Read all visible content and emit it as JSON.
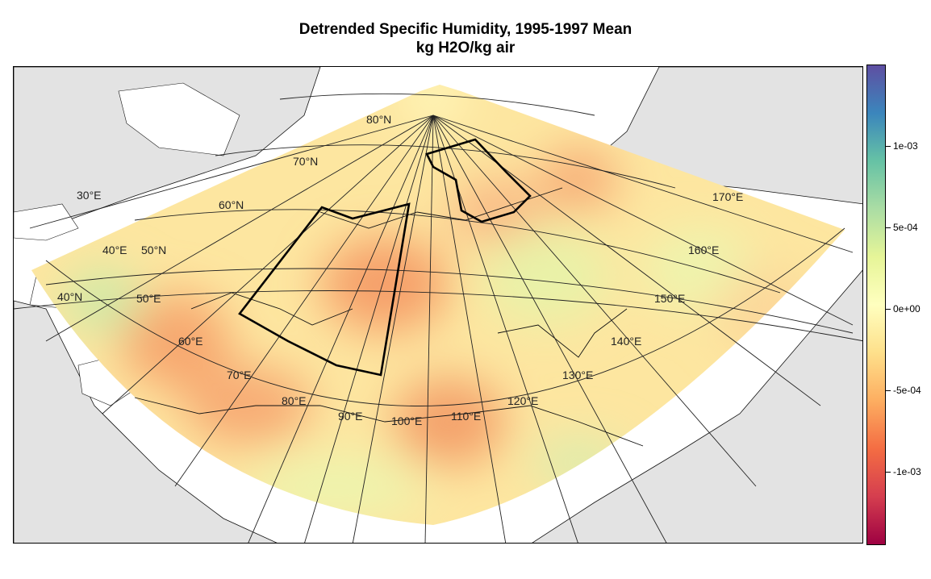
{
  "title": {
    "line1": "Detrended Specific Humidity, 1995-1997 Mean",
    "line2": "kg H2O/kg air"
  },
  "colorbar": {
    "colors": [
      "#5e4fa2",
      "#3b86bc",
      "#66c2a5",
      "#abdda4",
      "#e6f598",
      "#ffffbf",
      "#fee08b",
      "#fdae61",
      "#f46d43",
      "#d53e4f",
      "#9e0142"
    ],
    "range": [
      -0.00145,
      0.0015
    ],
    "ticks": [
      {
        "value": 0.001,
        "label": "1e-03"
      },
      {
        "value": 0.0005,
        "label": "5e-04"
      },
      {
        "value": 0,
        "label": "0e+00"
      },
      {
        "value": -0.0005,
        "label": "-5e-04"
      },
      {
        "value": -0.001,
        "label": "-1e-03"
      }
    ]
  },
  "grid_labels": {
    "latitudes": [
      "80°N",
      "70°N",
      "60°N",
      "50°N",
      "40°N"
    ],
    "longitudes": [
      "30°E",
      "40°E",
      "50°E",
      "60°E",
      "70°E",
      "80°E",
      "90°E",
      "100°E",
      "110°E",
      "120°E",
      "130°E",
      "140°E",
      "150°E",
      "160°E",
      "170°E"
    ]
  }
}
